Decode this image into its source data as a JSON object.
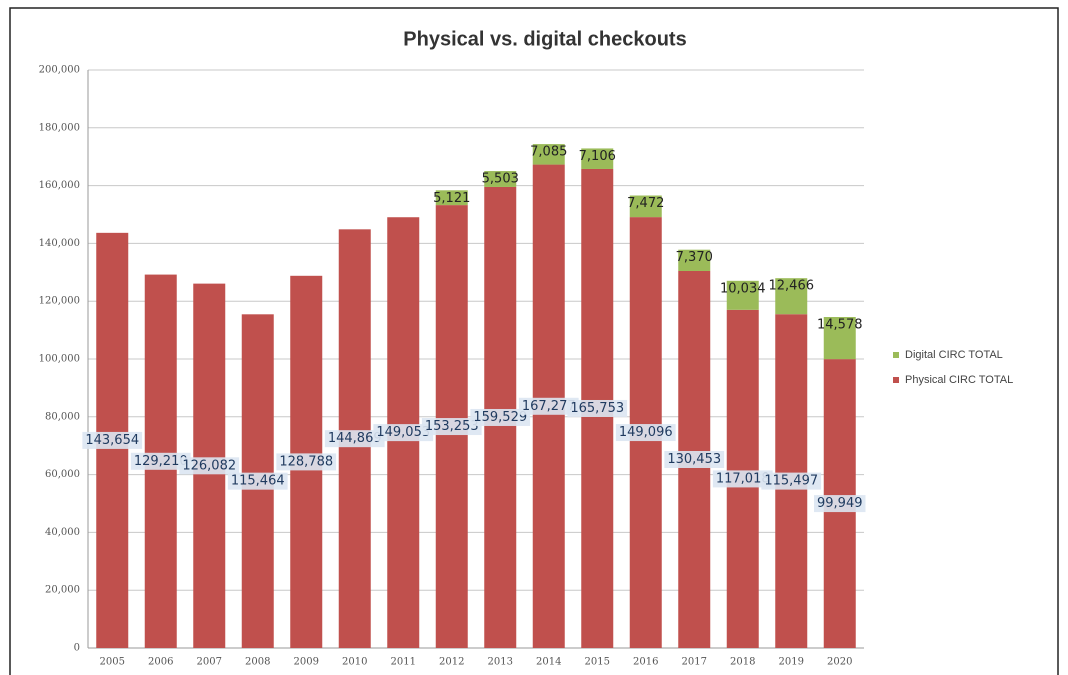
{
  "chart_data": {
    "type": "bar",
    "stacked": true,
    "title": "Physical vs. digital checkouts",
    "categories": [
      "2005",
      "2006",
      "2007",
      "2008",
      "2009",
      "2010",
      "2011",
      "2012",
      "2013",
      "2014",
      "2015",
      "2016",
      "2017",
      "2018",
      "2019",
      "2020"
    ],
    "series": [
      {
        "name": "Physical CIRC TOTAL",
        "color": "#c0504d",
        "values": [
          143654,
          129210,
          126082,
          115464,
          128788,
          144869,
          149053,
          153253,
          159529,
          167277,
          165753,
          149096,
          130453,
          117018,
          115497,
          99949
        ],
        "value_labels": [
          "143,654",
          "129,210",
          "126,082",
          "115,464",
          "128,788",
          "144,869",
          "149,053",
          "153,253",
          "159,529",
          "167,277",
          "165,753",
          "149,096",
          "130,453",
          "117,018",
          "115,497",
          "99,949"
        ]
      },
      {
        "name": "Digital CIRC TOTAL",
        "color": "#9bbb59",
        "values": [
          null,
          null,
          null,
          null,
          null,
          null,
          null,
          5121,
          5503,
          7085,
          7106,
          7472,
          7370,
          10034,
          12466,
          14578
        ],
        "value_labels": [
          null,
          null,
          null,
          null,
          null,
          null,
          null,
          "5,121",
          "5,503",
          "7,085",
          "7,106",
          "7,472",
          "7,370",
          "10,034",
          "12,466",
          "14,578"
        ]
      }
    ],
    "ylim": [
      0,
      200000
    ],
    "yticks": [
      0,
      {
        "value": 20000,
        "label": "20,000"
      },
      {
        "value": 40000,
        "label": "40,000"
      },
      {
        "value": 60000,
        "label": "60,000"
      },
      {
        "value": 80000,
        "label": "80,000"
      },
      {
        "value": 100000,
        "label": "100,000"
      },
      {
        "value": 120000,
        "label": "120,000"
      },
      {
        "value": 140000,
        "label": "140,000"
      },
      {
        "value": 160000,
        "label": "160,000"
      },
      {
        "value": 180000,
        "label": "180,000"
      },
      {
        "value": 200000,
        "label": "200,000"
      }
    ],
    "grid": true,
    "legend": "right"
  }
}
